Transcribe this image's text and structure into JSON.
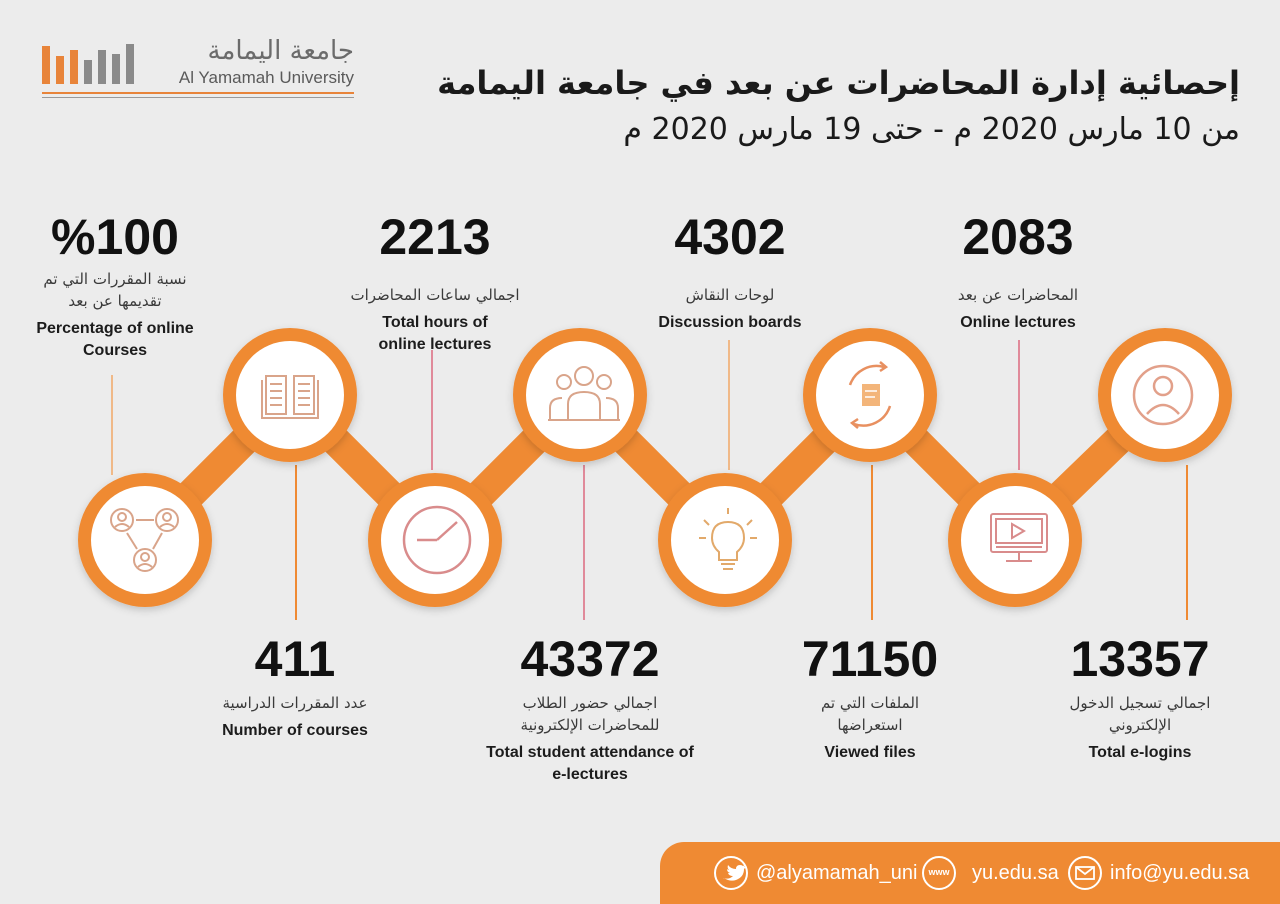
{
  "logo": {
    "arabic": "جامعة اليمامة",
    "english": "Al Yamamah University"
  },
  "header": {
    "title": "إحصائية إدارة المحاضرات عن بعد في جامعة اليمامة",
    "subtitle": "من 10 مارس 2020 م -  حتى 19 مارس 2020 م"
  },
  "stats_top": [
    {
      "value": "%100",
      "ar": "نسبة المقررات التي تم تقديمها عن بعد",
      "en": "Percentage of online Courses",
      "icon": "users-network-icon"
    },
    {
      "value": "2213",
      "ar": "اجمالي ساعات المحاضرات",
      "en": "Total hours of online lectures",
      "icon": "clock-icon"
    },
    {
      "value": "4302",
      "ar": "لوحات النقاش",
      "en": "Discussion boards",
      "icon": "lightbulb-icon"
    },
    {
      "value": "2083",
      "ar": "المحاضرات عن بعد",
      "en": "Online lectures",
      "icon": "monitor-play-icon"
    }
  ],
  "stats_bottom": [
    {
      "value": "411",
      "ar": "عدد المقررات الدراسية",
      "en": "Number of courses",
      "icon": "open-book-icon"
    },
    {
      "value": "43372",
      "ar": "اجمالي حضور الطلاب للمحاضرات الإلكترونية",
      "en": "Total student attendance of e-lectures",
      "icon": "group-icon"
    },
    {
      "value": "71150",
      "ar": "الملفات التي تم استعراضها",
      "en": "Viewed files",
      "icon": "file-refresh-icon"
    },
    {
      "value": "13357",
      "ar": "اجمالي تسجيل الدخول الإلكتروني",
      "en": "Total e-logins",
      "icon": "user-icon"
    }
  ],
  "footer": {
    "twitter": "@alyamamah_uni",
    "website": "yu.edu.sa",
    "email": "info@yu.edu.sa",
    "www_label": "www"
  },
  "colors": {
    "accent": "#ef8a33",
    "icon_stroke": "#d9a48a",
    "background": "#ececec"
  }
}
